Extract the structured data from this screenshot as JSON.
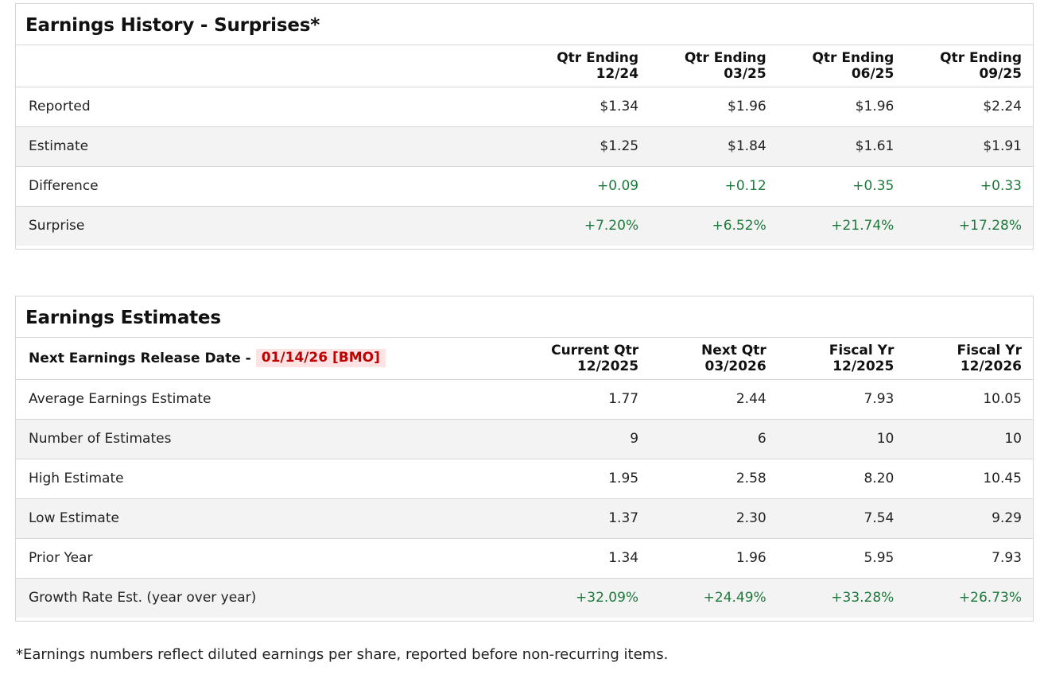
{
  "history": {
    "title": "Earnings History - Surprises*",
    "columns": [
      {
        "line1": "Qtr Ending",
        "line2": "12/24"
      },
      {
        "line1": "Qtr Ending",
        "line2": "03/25"
      },
      {
        "line1": "Qtr Ending",
        "line2": "06/25"
      },
      {
        "line1": "Qtr Ending",
        "line2": "09/25"
      }
    ],
    "rows": [
      {
        "label": "Reported",
        "values": [
          "$1.34",
          "$1.96",
          "$1.96",
          "$2.24"
        ]
      },
      {
        "label": "Estimate",
        "values": [
          "$1.25",
          "$1.84",
          "$1.61",
          "$1.91"
        ]
      },
      {
        "label": "Difference",
        "values": [
          "+0.09",
          "+0.12",
          "+0.35",
          "+0.33"
        ]
      },
      {
        "label": "Surprise",
        "values": [
          "+7.20%",
          "+6.52%",
          "+21.74%",
          "+17.28%"
        ]
      }
    ]
  },
  "estimates": {
    "title": "Earnings Estimates",
    "next_release_label": "Next Earnings Release Date -",
    "next_release_value": "01/14/26 [BMO]",
    "columns": [
      {
        "line1": "Current Qtr",
        "line2": "12/2025"
      },
      {
        "line1": "Next Qtr",
        "line2": "03/2026"
      },
      {
        "line1": "Fiscal Yr",
        "line2": "12/2025"
      },
      {
        "line1": "Fiscal Yr",
        "line2": "12/2026"
      }
    ],
    "rows": [
      {
        "label": "Average Earnings Estimate",
        "values": [
          "1.77",
          "2.44",
          "7.93",
          "10.05"
        ]
      },
      {
        "label": "Number of Estimates",
        "values": [
          "9",
          "6",
          "10",
          "10"
        ]
      },
      {
        "label": "High Estimate",
        "values": [
          "1.95",
          "2.58",
          "8.20",
          "10.45"
        ]
      },
      {
        "label": "Low Estimate",
        "values": [
          "1.37",
          "2.30",
          "7.54",
          "9.29"
        ]
      },
      {
        "label": "Prior Year",
        "values": [
          "1.34",
          "1.96",
          "5.95",
          "7.93"
        ]
      },
      {
        "label": "Growth Rate Est. (year over year)",
        "values": [
          "+32.09%",
          "+24.49%",
          "+33.28%",
          "+26.73%"
        ]
      }
    ]
  },
  "footnote": "*Earnings numbers reflect diluted earnings per share, reported before non-recurring items.",
  "colors": {
    "positive": "#1e7a3c",
    "release_badge_text": "#c00000",
    "release_badge_bg": "#fde3e3",
    "row_alt_bg": "#f3f3f3"
  }
}
